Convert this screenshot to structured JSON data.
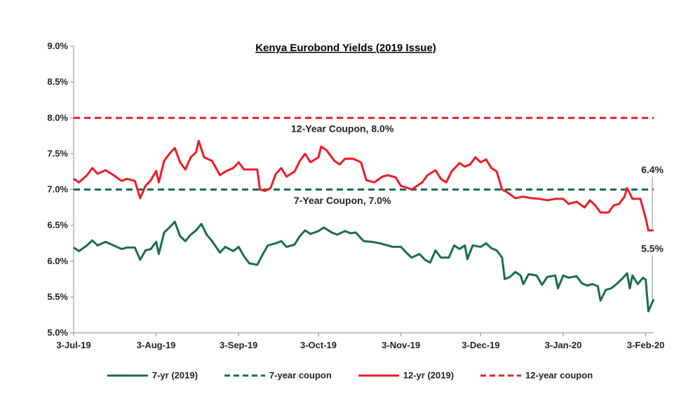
{
  "chart_data": {
    "type": "line",
    "title": "Kenya Eurobond Yields (2019 Issue)",
    "xlabel": "",
    "ylabel": "",
    "x_ticks": [
      "3-Jul-19",
      "3-Aug-19",
      "3-Sep-19",
      "3-Oct-19",
      "3-Nov-19",
      "3-Dec-19",
      "3-Jan-20",
      "3-Feb-20"
    ],
    "y_ticks": [
      "9.0%",
      "8.5%",
      "8.0%",
      "7.5%",
      "7.0%",
      "6.5%",
      "6.0%",
      "5.5%",
      "5.0%"
    ],
    "ylim": [
      5.0,
      9.0
    ],
    "xlim": [
      "2019-07-03",
      "2020-02-06"
    ],
    "grid": false,
    "legend_position": "bottom",
    "series": [
      {
        "name": "7-yr (2019)",
        "color": "#1a6b52",
        "style": "solid",
        "points": [
          [
            "2019-07-03",
            6.19
          ],
          [
            "2019-07-05",
            6.14
          ],
          [
            "2019-07-08",
            6.22
          ],
          [
            "2019-07-10",
            6.29
          ],
          [
            "2019-07-12",
            6.22
          ],
          [
            "2019-07-15",
            6.27
          ],
          [
            "2019-07-18",
            6.22
          ],
          [
            "2019-07-21",
            6.17
          ],
          [
            "2019-07-23",
            6.19
          ],
          [
            "2019-07-26",
            6.19
          ],
          [
            "2019-07-28",
            6.02
          ],
          [
            "2019-07-30",
            6.15
          ],
          [
            "2019-08-01",
            6.17
          ],
          [
            "2019-08-03",
            6.27
          ],
          [
            "2019-08-04",
            6.1
          ],
          [
            "2019-08-06",
            6.4
          ],
          [
            "2019-08-08",
            6.47
          ],
          [
            "2019-08-10",
            6.55
          ],
          [
            "2019-08-12",
            6.35
          ],
          [
            "2019-08-14",
            6.28
          ],
          [
            "2019-08-16",
            6.37
          ],
          [
            "2019-08-18",
            6.43
          ],
          [
            "2019-08-20",
            6.52
          ],
          [
            "2019-08-22",
            6.37
          ],
          [
            "2019-08-24",
            6.28
          ],
          [
            "2019-08-27",
            6.12
          ],
          [
            "2019-08-29",
            6.2
          ],
          [
            "2019-09-01",
            6.14
          ],
          [
            "2019-09-03",
            6.2
          ],
          [
            "2019-09-05",
            6.07
          ],
          [
            "2019-09-07",
            5.97
          ],
          [
            "2019-09-10",
            5.95
          ],
          [
            "2019-09-12",
            6.09
          ],
          [
            "2019-09-14",
            6.22
          ],
          [
            "2019-09-17",
            6.25
          ],
          [
            "2019-09-19",
            6.28
          ],
          [
            "2019-09-21",
            6.2
          ],
          [
            "2019-09-24",
            6.23
          ],
          [
            "2019-09-26",
            6.35
          ],
          [
            "2019-09-28",
            6.43
          ],
          [
            "2019-09-30",
            6.38
          ],
          [
            "2019-10-03",
            6.42
          ],
          [
            "2019-10-05",
            6.47
          ],
          [
            "2019-10-08",
            6.4
          ],
          [
            "2019-10-10",
            6.37
          ],
          [
            "2019-10-13",
            6.42
          ],
          [
            "2019-10-15",
            6.39
          ],
          [
            "2019-10-17",
            6.4
          ],
          [
            "2019-10-20",
            6.28
          ],
          [
            "2019-10-23",
            6.27
          ],
          [
            "2019-10-26",
            6.25
          ],
          [
            "2019-10-29",
            6.22
          ],
          [
            "2019-10-31",
            6.2
          ],
          [
            "2019-11-03",
            6.2
          ],
          [
            "2019-11-05",
            6.12
          ],
          [
            "2019-11-07",
            6.05
          ],
          [
            "2019-11-10",
            6.1
          ],
          [
            "2019-11-12",
            6.02
          ],
          [
            "2019-11-14",
            5.98
          ],
          [
            "2019-11-16",
            6.15
          ],
          [
            "2019-11-18",
            6.05
          ],
          [
            "2019-11-21",
            6.05
          ],
          [
            "2019-11-23",
            6.22
          ],
          [
            "2019-11-25",
            6.17
          ],
          [
            "2019-11-27",
            6.22
          ],
          [
            "2019-11-28",
            6.03
          ],
          [
            "2019-11-30",
            6.22
          ],
          [
            "2019-12-03",
            6.2
          ],
          [
            "2019-12-05",
            6.25
          ],
          [
            "2019-12-07",
            6.18
          ],
          [
            "2019-12-09",
            6.15
          ],
          [
            "2019-12-11",
            6.05
          ],
          [
            "2019-12-12",
            5.75
          ],
          [
            "2019-12-14",
            5.78
          ],
          [
            "2019-12-16",
            5.85
          ],
          [
            "2019-12-18",
            5.8
          ],
          [
            "2019-12-19",
            5.68
          ],
          [
            "2019-12-21",
            5.82
          ],
          [
            "2019-12-24",
            5.8
          ],
          [
            "2019-12-26",
            5.67
          ],
          [
            "2019-12-28",
            5.78
          ],
          [
            "2019-12-31",
            5.8
          ],
          [
            "2020-01-01",
            5.62
          ],
          [
            "2020-01-03",
            5.8
          ],
          [
            "2020-01-05",
            5.77
          ],
          [
            "2020-01-08",
            5.79
          ],
          [
            "2020-01-10",
            5.69
          ],
          [
            "2020-01-12",
            5.66
          ],
          [
            "2020-01-14",
            5.68
          ],
          [
            "2020-01-16",
            5.65
          ],
          [
            "2020-01-17",
            5.45
          ],
          [
            "2020-01-19",
            5.6
          ],
          [
            "2020-01-21",
            5.62
          ],
          [
            "2020-01-23",
            5.68
          ],
          [
            "2020-01-25",
            5.75
          ],
          [
            "2020-01-27",
            5.83
          ],
          [
            "2020-01-28",
            5.62
          ],
          [
            "2020-01-29",
            5.8
          ],
          [
            "2020-01-31",
            5.68
          ],
          [
            "2020-02-02",
            5.77
          ],
          [
            "2020-02-03",
            5.74
          ],
          [
            "2020-02-04",
            5.3
          ],
          [
            "2020-02-06",
            5.47
          ]
        ]
      },
      {
        "name": "7-year coupon",
        "color": "#1a6b52",
        "style": "dashed",
        "points": [
          [
            "2019-07-03",
            7.0
          ],
          [
            "2020-02-06",
            7.0
          ]
        ]
      },
      {
        "name": "12-yr (2019)",
        "color": "#ee1c25",
        "style": "solid",
        "points": [
          [
            "2019-07-03",
            7.15
          ],
          [
            "2019-07-05",
            7.1
          ],
          [
            "2019-07-08",
            7.2
          ],
          [
            "2019-07-10",
            7.3
          ],
          [
            "2019-07-12",
            7.22
          ],
          [
            "2019-07-15",
            7.27
          ],
          [
            "2019-07-18",
            7.2
          ],
          [
            "2019-07-21",
            7.12
          ],
          [
            "2019-07-23",
            7.15
          ],
          [
            "2019-07-26",
            7.12
          ],
          [
            "2019-07-28",
            6.88
          ],
          [
            "2019-07-30",
            7.05
          ],
          [
            "2019-08-01",
            7.13
          ],
          [
            "2019-08-03",
            7.26
          ],
          [
            "2019-08-04",
            7.1
          ],
          [
            "2019-08-06",
            7.4
          ],
          [
            "2019-08-08",
            7.5
          ],
          [
            "2019-08-10",
            7.58
          ],
          [
            "2019-08-12",
            7.38
          ],
          [
            "2019-08-14",
            7.28
          ],
          [
            "2019-08-16",
            7.45
          ],
          [
            "2019-08-18",
            7.52
          ],
          [
            "2019-08-19",
            7.68
          ],
          [
            "2019-08-21",
            7.45
          ],
          [
            "2019-08-24",
            7.4
          ],
          [
            "2019-08-27",
            7.2
          ],
          [
            "2019-08-29",
            7.25
          ],
          [
            "2019-09-01",
            7.3
          ],
          [
            "2019-09-03",
            7.38
          ],
          [
            "2019-09-05",
            7.28
          ],
          [
            "2019-09-07",
            7.28
          ],
          [
            "2019-09-10",
            7.28
          ],
          [
            "2019-09-11",
            7.0
          ],
          [
            "2019-09-13",
            6.98
          ],
          [
            "2019-09-15",
            7.02
          ],
          [
            "2019-09-17",
            7.22
          ],
          [
            "2019-09-19",
            7.3
          ],
          [
            "2019-09-21",
            7.18
          ],
          [
            "2019-09-24",
            7.25
          ],
          [
            "2019-09-26",
            7.4
          ],
          [
            "2019-09-28",
            7.5
          ],
          [
            "2019-09-30",
            7.38
          ],
          [
            "2019-10-03",
            7.45
          ],
          [
            "2019-10-04",
            7.6
          ],
          [
            "2019-10-06",
            7.55
          ],
          [
            "2019-10-09",
            7.4
          ],
          [
            "2019-10-11",
            7.35
          ],
          [
            "2019-10-13",
            7.43
          ],
          [
            "2019-10-16",
            7.43
          ],
          [
            "2019-10-19",
            7.38
          ],
          [
            "2019-10-21",
            7.13
          ],
          [
            "2019-10-24",
            7.1
          ],
          [
            "2019-10-27",
            7.18
          ],
          [
            "2019-10-29",
            7.2
          ],
          [
            "2019-11-01",
            7.17
          ],
          [
            "2019-11-03",
            7.05
          ],
          [
            "2019-11-05",
            7.03
          ],
          [
            "2019-11-07",
            7.0
          ],
          [
            "2019-11-09",
            7.05
          ],
          [
            "2019-11-11",
            7.1
          ],
          [
            "2019-11-13",
            7.2
          ],
          [
            "2019-11-16",
            7.27
          ],
          [
            "2019-11-18",
            7.15
          ],
          [
            "2019-11-20",
            7.1
          ],
          [
            "2019-11-22",
            7.25
          ],
          [
            "2019-11-25",
            7.37
          ],
          [
            "2019-11-27",
            7.32
          ],
          [
            "2019-11-29",
            7.35
          ],
          [
            "2019-12-01",
            7.45
          ],
          [
            "2019-12-03",
            7.38
          ],
          [
            "2019-12-05",
            7.42
          ],
          [
            "2019-12-07",
            7.3
          ],
          [
            "2019-12-09",
            7.25
          ],
          [
            "2019-12-11",
            7.0
          ],
          [
            "2019-12-13",
            6.96
          ],
          [
            "2019-12-16",
            6.88
          ],
          [
            "2019-12-19",
            6.9
          ],
          [
            "2019-12-22",
            6.88
          ],
          [
            "2019-12-25",
            6.87
          ],
          [
            "2019-12-28",
            6.85
          ],
          [
            "2019-12-31",
            6.87
          ],
          [
            "2020-01-03",
            6.87
          ],
          [
            "2020-01-05",
            6.8
          ],
          [
            "2020-01-08",
            6.83
          ],
          [
            "2020-01-11",
            6.75
          ],
          [
            "2020-01-13",
            6.85
          ],
          [
            "2020-01-15",
            6.78
          ],
          [
            "2020-01-17",
            6.68
          ],
          [
            "2020-01-20",
            6.68
          ],
          [
            "2020-01-22",
            6.78
          ],
          [
            "2020-01-24",
            6.8
          ],
          [
            "2020-01-26",
            6.9
          ],
          [
            "2020-01-27",
            7.02
          ],
          [
            "2020-01-29",
            6.87
          ],
          [
            "2020-02-01",
            6.87
          ],
          [
            "2020-02-03",
            6.6
          ],
          [
            "2020-02-04",
            6.43
          ],
          [
            "2020-02-06",
            6.43
          ]
        ]
      },
      {
        "name": "12-year coupon",
        "color": "#ee1c25",
        "style": "dashed",
        "points": [
          [
            "2019-07-03",
            8.0
          ],
          [
            "2020-02-06",
            8.0
          ]
        ]
      }
    ],
    "annotations": [
      {
        "text": "12-Year Coupon, 8.0%",
        "x": "2019-10-12",
        "y": 7.85
      },
      {
        "text": "7-Year Coupon, 7.0%",
        "x": "2019-10-12",
        "y": 6.85
      },
      {
        "text": "6.4%",
        "x": "2020-02-06",
        "y": 7.28
      },
      {
        "text": "5.5%",
        "x": "2020-02-06",
        "y": 6.18
      }
    ]
  }
}
